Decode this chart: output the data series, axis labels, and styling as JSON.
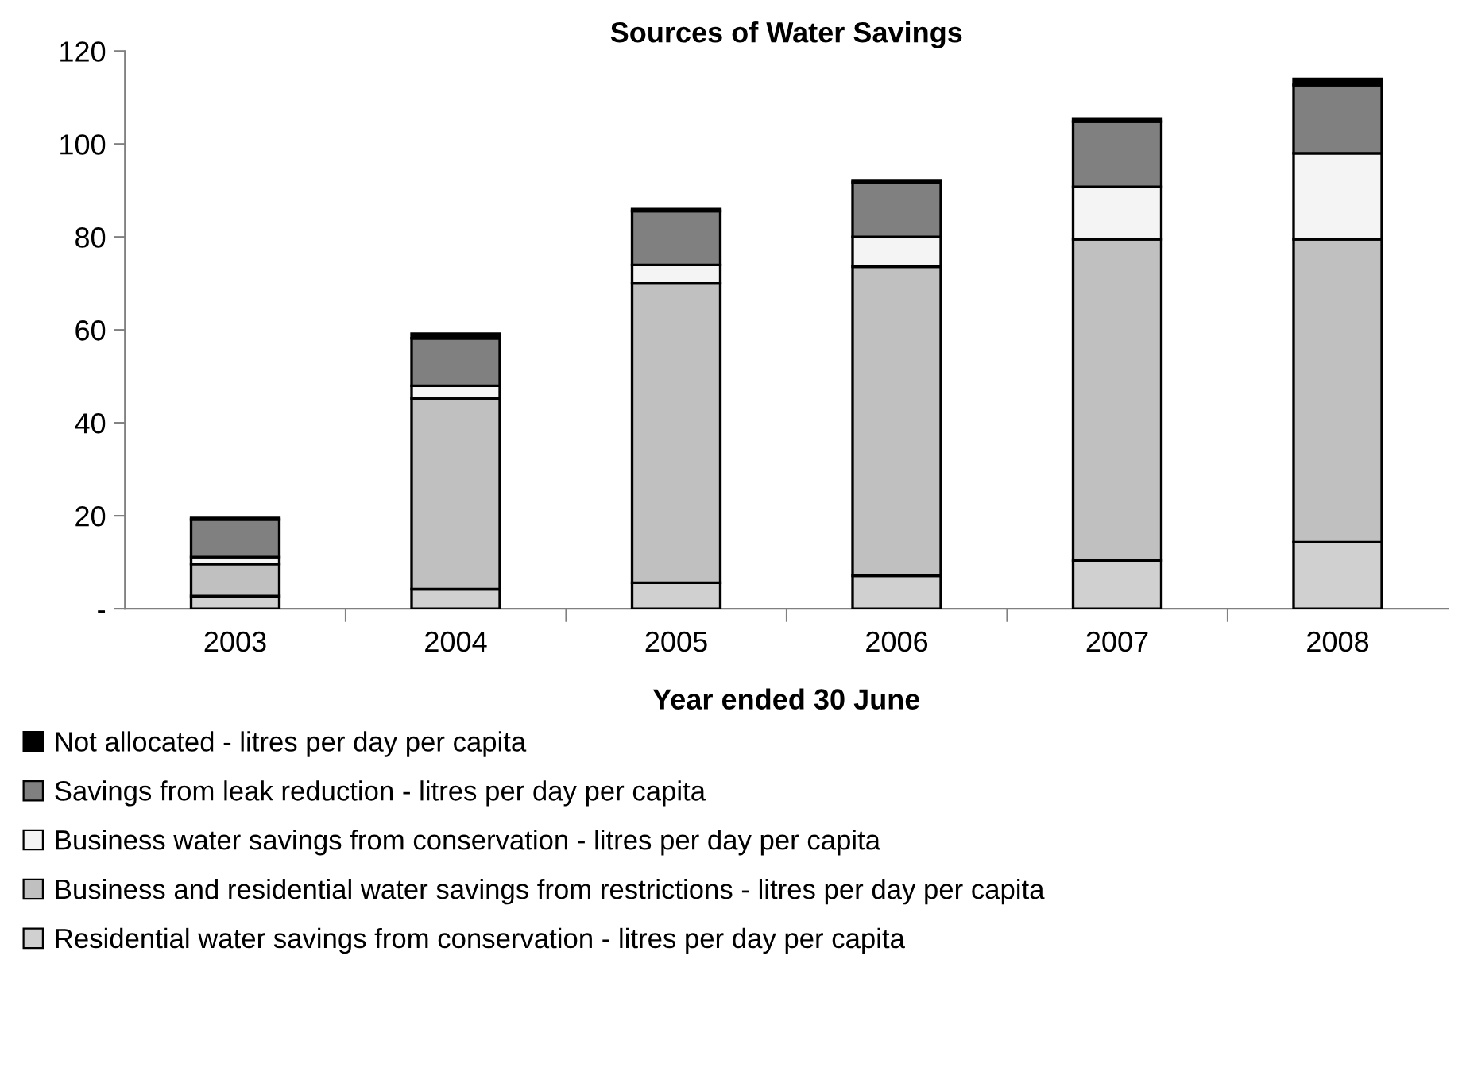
{
  "chart_data": {
    "type": "bar",
    "stacked": true,
    "title": "Sources of Water Savings",
    "xlabel": "Year ended 30 June",
    "categories": [
      "2003",
      "2004",
      "2005",
      "2006",
      "2007",
      "2008"
    ],
    "series": [
      {
        "name": "Residential water savings from conservation - litres per day per capita",
        "color": "#d0d0d0",
        "values": [
          2.7,
          4.2,
          5.6,
          7.1,
          10.4,
          14.3
        ]
      },
      {
        "name": "Business and residential water savings from restrictions - litres per day per capita",
        "color": "#c0c0c0",
        "values": [
          6.9,
          41.0,
          64.4,
          66.5,
          69.1,
          65.2
        ]
      },
      {
        "name": "Business water savings from conservation - litres per day per capita",
        "color": "#f4f4f4",
        "values": [
          1.5,
          2.8,
          4.0,
          6.4,
          11.3,
          18.5
        ]
      },
      {
        "name": "Savings from leak reduction - litres per day per capita",
        "color": "#808080",
        "values": [
          8.1,
          10.2,
          11.6,
          11.8,
          14.0,
          14.7
        ]
      },
      {
        "name": "Not allocated - litres per day per capita",
        "color": "#000000",
        "values": [
          0.3,
          1.0,
          0.4,
          0.4,
          0.7,
          1.3
        ]
      }
    ],
    "ylim": [
      0,
      120
    ],
    "yticks": [
      {
        "value": 0,
        "label": "-"
      },
      20,
      40,
      60,
      80,
      100,
      120
    ],
    "grid": false,
    "legend": "bottom"
  }
}
